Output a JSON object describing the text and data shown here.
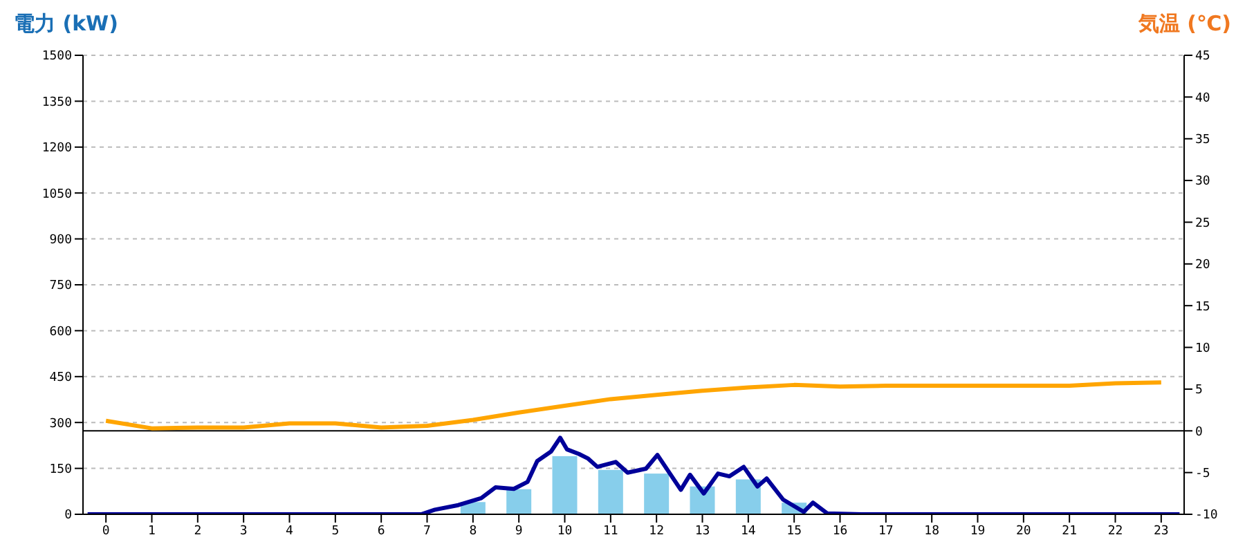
{
  "chart_data": {
    "type": "bar",
    "ylabel": "電力 (kW)",
    "y2label": "気温 (℃)",
    "xlim": [
      -0.5,
      23.5
    ],
    "xticks": [
      0,
      1,
      2,
      3,
      4,
      5,
      6,
      7,
      8,
      9,
      10,
      11,
      12,
      13,
      14,
      15,
      16,
      17,
      18,
      19,
      20,
      21,
      22,
      23
    ],
    "ylim": [
      0,
      1500
    ],
    "yticks": [
      0,
      150,
      300,
      450,
      600,
      750,
      900,
      1050,
      1200,
      1350,
      1500
    ],
    "y2lim": [
      -10,
      45
    ],
    "y2ticks": [
      -10,
      -5,
      0,
      5,
      10,
      15,
      20,
      25,
      30,
      35,
      40,
      45
    ],
    "grid": "y",
    "legend": false,
    "marker": "none",
    "line_style": "solid",
    "series": [
      {
        "color": "#87ceeb",
        "x": [
          0,
          1,
          2,
          3,
          4,
          5,
          6,
          7,
          8,
          9,
          10,
          11,
          12,
          13,
          14,
          15,
          16,
          17,
          18,
          19,
          20,
          21,
          22,
          23
        ],
        "values": [
          0,
          0,
          0,
          0,
          0,
          0,
          0,
          0,
          40,
          82,
          190,
          145,
          133,
          91,
          114,
          38,
          0,
          0,
          0,
          0,
          0,
          0,
          0,
          0
        ]
      },
      {
        "type": "line",
        "color": "#000099",
        "x": [
          -0.4,
          6.16,
          6.87,
          7.17,
          7.68,
          8.18,
          8.49,
          8.89,
          9.19,
          9.4,
          9.7,
          9.9,
          10.05,
          10.31,
          10.51,
          10.71,
          11.11,
          11.37,
          11.77,
          12.02,
          12.28,
          12.53,
          12.73,
          13.03,
          13.34,
          13.59,
          13.9,
          14.2,
          14.4,
          14.76,
          15.21,
          15.41,
          15.72,
          16.47,
          23.4
        ],
        "values": [
          0,
          0,
          0,
          15,
          30,
          53,
          88,
          83,
          106,
          174,
          205,
          250,
          212,
          197,
          182,
          155,
          171,
          136,
          149,
          194,
          136,
          80,
          129,
          68,
          133,
          124,
          155,
          91,
          117,
          48,
          8,
          38,
          3,
          0,
          0
        ]
      },
      {
        "type": "line",
        "axis": "y2",
        "color": "#ffa500",
        "x": [
          0,
          1,
          2,
          3,
          4,
          5,
          6,
          7,
          8,
          9,
          10,
          11,
          12,
          13,
          14,
          15,
          16,
          17,
          18,
          19,
          20,
          21,
          22,
          23
        ],
        "values": [
          1.2,
          0.3,
          0.4,
          0.4,
          0.9,
          0.9,
          0.4,
          0.6,
          1.3,
          2.2,
          3.0,
          3.8,
          4.3,
          4.8,
          5.2,
          5.5,
          5.3,
          5.4,
          5.4,
          5.4,
          5.4,
          5.4,
          5.7,
          5.8
        ]
      }
    ],
    "ref_lines": [
      {
        "axis": "y2",
        "value": 0,
        "color": "#000000"
      }
    ]
  }
}
